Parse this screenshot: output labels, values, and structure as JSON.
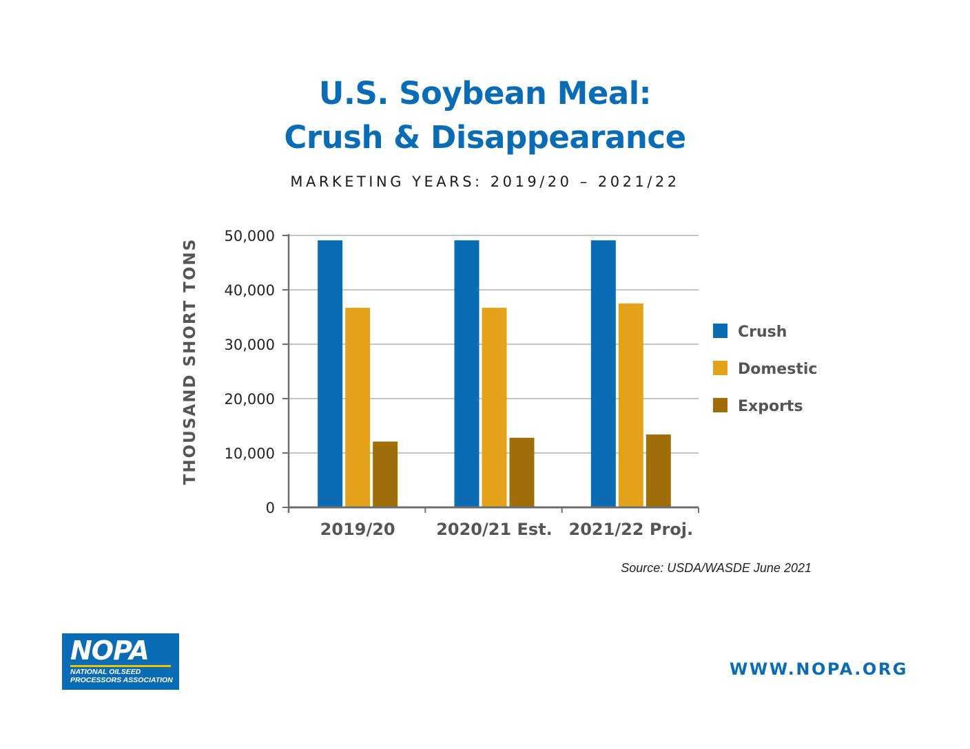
{
  "page": {
    "title_line1": "U.S. Soybean Meal:",
    "title_line2": "Crush & Disappearance",
    "subtitle": "MARKETING YEARS: 2019/20 – 2021/22",
    "source": "Source: USDA/WASDE June 2021",
    "website": "WWW.NOPA.ORG"
  },
  "logo": {
    "mark": "NOPA",
    "tagline_line1": "NATIONAL OILSEED",
    "tagline_line2": "PROCESSORS ASSOCIATION"
  },
  "colors": {
    "title": "#0a6cb5",
    "crush": "#0a6cb5",
    "domestic": "#e3a21a",
    "exports": "#a06e08",
    "grid": "#c4c4c4",
    "axis": "#6e6e6e"
  },
  "chart_data": {
    "type": "bar",
    "ylabel": "THOUSAND SHORT TONS",
    "ylim": [
      0,
      50000
    ],
    "yticks": [
      "0",
      "10,000",
      "20,000",
      "30,000",
      "40,000",
      "50,000"
    ],
    "categories": [
      "2019/20",
      "2020/21 Est.",
      "2021/22 Proj."
    ],
    "series": [
      {
        "name": "Crush",
        "color": "#0a6cb5",
        "values": [
          49100,
          49100,
          49100
        ]
      },
      {
        "name": "Domestic",
        "color": "#e3a21a",
        "values": [
          36700,
          36700,
          37500
        ]
      },
      {
        "name": "Exports",
        "color": "#a06e08",
        "values": [
          12100,
          12800,
          13400
        ]
      }
    ],
    "grid": true,
    "legend": "right"
  }
}
